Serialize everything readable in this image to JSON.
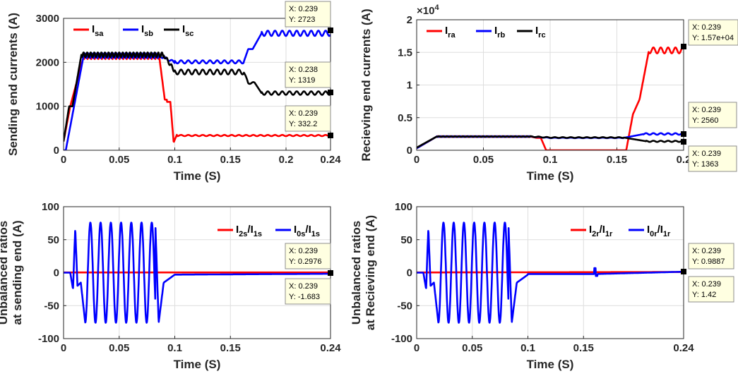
{
  "chart_data": [
    {
      "type": "line",
      "id": "p1",
      "xlabel": "Time (S)",
      "ylabel": "Sending end currents (A)",
      "xlim": [
        0,
        0.24
      ],
      "ylim": [
        0,
        3000
      ],
      "xticks": [
        0,
        0.05,
        0.1,
        0.15,
        0.2,
        0.24
      ],
      "xtick_labels": [
        "0",
        "0.05",
        "0.1",
        "0.15",
        "0.2",
        "0.24"
      ],
      "yticks": [
        0,
        1000,
        2000,
        3000
      ],
      "ytick_labels": [
        "0",
        "1000",
        "2000",
        "3000"
      ],
      "grid": true,
      "legend_position": "top-left",
      "series": [
        {
          "name": "I",
          "sub": "sa",
          "color": "#ff0000",
          "approx_values": [
            [
              0,
              200
            ],
            [
              0.006,
              1000
            ],
            [
              0.012,
              1300
            ],
            [
              0.018,
              2130
            ],
            [
              0.085,
              2130
            ],
            [
              0.09,
              1150
            ],
            [
              0.094,
              1100
            ],
            [
              0.098,
              180
            ],
            [
              0.1,
              350
            ],
            [
              0.24,
              332
            ]
          ]
        },
        {
          "name": "I",
          "sub": "sb",
          "color": "#0000ff",
          "approx_values": [
            [
              0,
              0
            ],
            [
              0.01,
              600
            ],
            [
              0.018,
              2150
            ],
            [
              0.085,
              2150
            ],
            [
              0.095,
              2050
            ],
            [
              0.1,
              2000
            ],
            [
              0.16,
              2000
            ],
            [
              0.165,
              2300
            ],
            [
              0.17,
              2300
            ],
            [
              0.178,
              2650
            ],
            [
              0.24,
              2650
            ]
          ]
        },
        {
          "name": "I",
          "sub": "sc",
          "color": "#000000",
          "approx_values": [
            [
              0,
              200
            ],
            [
              0.005,
              1000
            ],
            [
              0.01,
              1100
            ],
            [
              0.016,
              2170
            ],
            [
              0.09,
              2170
            ],
            [
              0.093,
              1930
            ],
            [
              0.098,
              1850
            ],
            [
              0.1,
              1800
            ],
            [
              0.16,
              1780
            ],
            [
              0.165,
              1550
            ],
            [
              0.17,
              1520
            ],
            [
              0.176,
              1300
            ],
            [
              0.24,
              1300
            ]
          ]
        }
      ],
      "datatips": [
        {
          "x": "X: 0.239",
          "y": "Y: 2723"
        },
        {
          "x": "X: 0.238",
          "y": "Y: 1319"
        },
        {
          "x": "X: 0.239",
          "y": "Y: 332.2"
        }
      ]
    },
    {
      "type": "line",
      "id": "p2",
      "xlabel": "Time (S)",
      "ylabel": "Recieving end currents (A)",
      "xlim": [
        0,
        0.2
      ],
      "ylim": [
        0,
        20000
      ],
      "exponent_label": "×10^4",
      "xticks": [
        0,
        0.05,
        0.1,
        0.15,
        0.2
      ],
      "xtick_labels": [
        "0",
        "0.05",
        "0.1",
        "0.15",
        "0.2"
      ],
      "yticks": [
        0,
        5000,
        10000,
        15000,
        20000
      ],
      "ytick_labels": [
        "0",
        "0.5",
        "1",
        "1.5",
        "2"
      ],
      "grid": true,
      "legend_position": "top-left",
      "series": [
        {
          "name": "I",
          "sub": "ra",
          "color": "#ff0000",
          "approx_values": [
            [
              0,
              300
            ],
            [
              0.015,
              2100
            ],
            [
              0.08,
              2100
            ],
            [
              0.085,
              1900
            ],
            [
              0.09,
              1900
            ],
            [
              0.095,
              0
            ],
            [
              0.155,
              0
            ],
            [
              0.16,
              2000
            ],
            [
              0.165,
              7000
            ],
            [
              0.17,
              8000
            ],
            [
              0.175,
              15500
            ],
            [
              0.2,
              15500
            ]
          ]
        },
        {
          "name": "I",
          "sub": "rb",
          "color": "#0000ff",
          "approx_values": [
            [
              0,
              300
            ],
            [
              0.015,
              2100
            ],
            [
              0.085,
              2100
            ],
            [
              0.095,
              1900
            ],
            [
              0.15,
              1900
            ],
            [
              0.16,
              2100
            ],
            [
              0.17,
              2500
            ],
            [
              0.2,
              2560
            ]
          ]
        },
        {
          "name": "I",
          "sub": "rc",
          "color": "#000000",
          "approx_values": [
            [
              0,
              400
            ],
            [
              0.015,
              2100
            ],
            [
              0.085,
              2100
            ],
            [
              0.095,
              1950
            ],
            [
              0.155,
              1950
            ],
            [
              0.165,
              1700
            ],
            [
              0.172,
              1400
            ],
            [
              0.2,
              1363
            ]
          ]
        }
      ],
      "datatips": [
        {
          "x": "X: 0.239",
          "y": "Y: 1.57e+04"
        },
        {
          "x": "X: 0.239",
          "y": "Y: 2560"
        },
        {
          "x": "X: 0.239",
          "y": "Y: 1363"
        }
      ]
    },
    {
      "type": "line",
      "id": "p3",
      "xlabel": "Time (S)",
      "ylabel_line1": "Unbalanced ratios",
      "ylabel_line2": "at sending end (A)",
      "xlim": [
        0,
        0.24
      ],
      "ylim": [
        -100,
        100
      ],
      "xticks": [
        0,
        0.05,
        0.1,
        0.15,
        0.24
      ],
      "xtick_labels": [
        "0",
        "0.05",
        "0.1",
        "0.15",
        "0.24"
      ],
      "yticks": [
        -100,
        -50,
        0,
        50,
        100
      ],
      "ytick_labels": [
        "-100",
        "-50",
        "0",
        "50",
        "100"
      ],
      "grid": true,
      "legend_position": "top-right",
      "series": [
        {
          "name": "I2s/I1s",
          "color": "#ff0000",
          "approx_values": [
            [
              0,
              0
            ],
            [
              0.24,
              0.3
            ]
          ]
        },
        {
          "name": "I0s/I1s",
          "color": "#0000ff",
          "approx_values": [
            [
              0.008,
              -25
            ],
            [
              0.01,
              68
            ],
            [
              0.02,
              -76
            ],
            [
              0.023,
              76
            ],
            [
              0.08,
              76
            ],
            [
              0.085,
              -76
            ],
            [
              0.09,
              -10
            ],
            [
              0.1,
              -2
            ],
            [
              0.24,
              -1.7
            ]
          ]
        }
      ],
      "legend": [
        {
          "a": "I",
          "as": "2s",
          "b": "/I",
          "bs": "1s"
        },
        {
          "a": "I",
          "as": "0s",
          "b": "/I",
          "bs": "1s"
        }
      ],
      "datatips": [
        {
          "x": "X: 0.239",
          "y": "Y: 0.2976"
        },
        {
          "x": "X: 0.239",
          "y": "Y: -1.683"
        }
      ]
    },
    {
      "type": "line",
      "id": "p4",
      "xlabel": "Time (S)",
      "ylabel_line1": "Unbalanced ratios",
      "ylabel_line2": "at Recieving end (A)",
      "xlim": [
        0,
        0.24
      ],
      "ylim": [
        -100,
        100
      ],
      "xticks": [
        0,
        0.05,
        0.1,
        0.15,
        0.24
      ],
      "xtick_labels": [
        "0",
        "0.05",
        "0.1",
        "0.15",
        "0.24"
      ],
      "yticks": [
        -100,
        -50,
        0,
        50,
        100
      ],
      "ytick_labels": [
        "-100",
        "-50",
        "0",
        "50",
        "100"
      ],
      "grid": true,
      "legend_position": "top-right",
      "series": [
        {
          "name": "I2r/I1r",
          "color": "#ff0000",
          "approx_values": [
            [
              0,
              0
            ],
            [
              0.24,
              1
            ]
          ]
        },
        {
          "name": "I0r/I1r",
          "color": "#0000ff",
          "approx_values": [
            [
              0.008,
              -25
            ],
            [
              0.01,
              68
            ],
            [
              0.02,
              -76
            ],
            [
              0.023,
              76
            ],
            [
              0.08,
              76
            ],
            [
              0.085,
              -76
            ],
            [
              0.09,
              -10
            ],
            [
              0.1,
              -2
            ],
            [
              0.16,
              7
            ],
            [
              0.24,
              1.4
            ]
          ]
        }
      ],
      "legend": [
        {
          "a": "I",
          "as": "2r",
          "b": "/I",
          "bs": "1r"
        },
        {
          "a": "I",
          "as": "0r",
          "b": "/I",
          "bs": "1r"
        }
      ],
      "datatips": [
        {
          "x": "X: 0.239",
          "y": "Y: 0.9887"
        },
        {
          "x": "X: 0.239",
          "y": "Y: 1.42"
        }
      ]
    }
  ]
}
